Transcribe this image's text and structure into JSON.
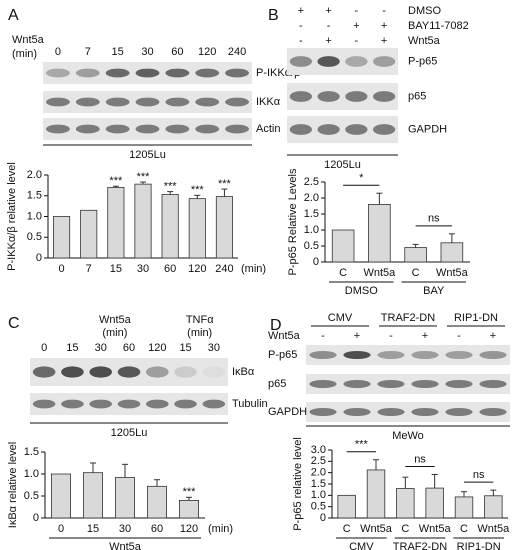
{
  "panel_labels": [
    "A",
    "B",
    "C",
    "D"
  ],
  "blots": [
    {
      "header": [
        "Wnt5a",
        "(min)"
      ],
      "lanes": [
        "0",
        "7",
        "15",
        "30",
        "60",
        "120",
        "240"
      ],
      "rows": [
        "P-IKKα/β",
        "IKKα",
        "Actin"
      ],
      "cell_line": "1205Lu"
    },
    {
      "treatments": [
        {
          "name": "DMSO",
          "signs": [
            "+",
            "+",
            "-",
            "-"
          ]
        },
        {
          "name": "BAY11-7082",
          "signs": [
            "-",
            "-",
            "+",
            "+"
          ]
        },
        {
          "name": "Wnt5a",
          "signs": [
            "-",
            "+",
            "-",
            "+"
          ]
        }
      ],
      "rows": [
        "P-p65",
        "p65",
        "GAPDH"
      ],
      "cell_line": "1205Lu"
    },
    {
      "headers": [
        {
          "name": "Wnt5a",
          "unit": "(min)"
        },
        {
          "name": "TNFα",
          "unit": "(min)"
        }
      ],
      "lanes": [
        "0",
        "15",
        "30",
        "60",
        "120",
        "15",
        "30"
      ],
      "rows": [
        "IκBα",
        "Tubulin"
      ],
      "cell_line": "1205Lu"
    },
    {
      "groups": [
        "CMV",
        "TRAF2-DN",
        "RIP1-DN"
      ],
      "treatment": {
        "name": "Wnt5a",
        "signs": [
          "-",
          "+",
          "-",
          "+",
          "-",
          "+"
        ]
      },
      "rows": [
        "P-p65",
        "p65",
        "GAPDH"
      ],
      "cell_line": "MeWo"
    }
  ],
  "chart_data": [
    {
      "type": "bar",
      "ylabel": "P-IKKα/β relative level",
      "xlabel": "(min)",
      "color": "#d9d9d9",
      "categories": [
        "0",
        "7",
        "15",
        "30",
        "60",
        "120",
        "240"
      ],
      "values": [
        1.0,
        1.15,
        1.7,
        1.78,
        1.53,
        1.43,
        1.48
      ],
      "errors": [
        0,
        0,
        0.03,
        0.05,
        0.07,
        0.08,
        0.18
      ],
      "annotations": [
        null,
        null,
        "***",
        "***",
        "***",
        "***",
        "***"
      ],
      "ylim": [
        0,
        2
      ],
      "yticks": [
        0,
        0.5,
        {
          "value": 1,
          "label": "1.0"
        },
        1.5,
        {
          "value": 2,
          "label": "2.0"
        }
      ]
    },
    {
      "type": "bar",
      "ylabel": "P-p65 Relative Levels",
      "color": "#d9d9d9",
      "categories": [
        "C",
        "Wnt5a",
        "C",
        "Wnt5a"
      ],
      "groups": [
        "DMSO",
        "BAY"
      ],
      "comparisons": [
        "*",
        "ns"
      ],
      "values": [
        1.0,
        1.8,
        0.45,
        0.6
      ],
      "errors": [
        0,
        0.35,
        0.1,
        0.28
      ],
      "ylim": [
        0,
        2.5
      ],
      "yticks": [
        0,
        0.5,
        {
          "value": 1,
          "label": "1.0"
        },
        1.5,
        {
          "value": 2,
          "label": "2.0"
        },
        2.5
      ]
    },
    {
      "type": "bar",
      "ylabel": "IκBα relative level",
      "xlabel": "(min)",
      "color": "#d9d9d9",
      "categories": [
        "0",
        "15",
        "30",
        "60",
        "120"
      ],
      "groups": [
        "Wnt5a"
      ],
      "values": [
        1.0,
        1.03,
        0.92,
        0.72,
        0.4
      ],
      "errors": [
        0,
        0.22,
        0.3,
        0.15,
        0.07
      ],
      "annotations": [
        null,
        null,
        null,
        null,
        "***"
      ],
      "ylim": [
        0,
        1.5
      ],
      "yticks": [
        0,
        0.5,
        {
          "value": 1,
          "label": "1.0"
        },
        1.5
      ]
    },
    {
      "type": "bar",
      "ylabel": "P-p65 relative level",
      "color": "#d9d9d9",
      "categories": [
        "C",
        "Wnt5a",
        "C",
        "Wnt5a",
        "C",
        "Wnt5a"
      ],
      "groups": [
        "CMV",
        "TRAF2-DN",
        "RIP1-DN"
      ],
      "comparisons": [
        "***",
        "ns",
        "ns"
      ],
      "values": [
        1.0,
        2.12,
        1.3,
        1.32,
        0.93,
        0.98
      ],
      "errors": [
        0,
        0.45,
        0.5,
        0.6,
        0.23,
        0.25
      ],
      "ylim": [
        0,
        3
      ],
      "yticks": [
        0,
        0.5,
        {
          "value": 1,
          "label": "1.0"
        },
        1.5,
        {
          "value": 2,
          "label": "2.0"
        },
        2.5,
        {
          "value": 3,
          "label": "3.0"
        }
      ]
    }
  ]
}
